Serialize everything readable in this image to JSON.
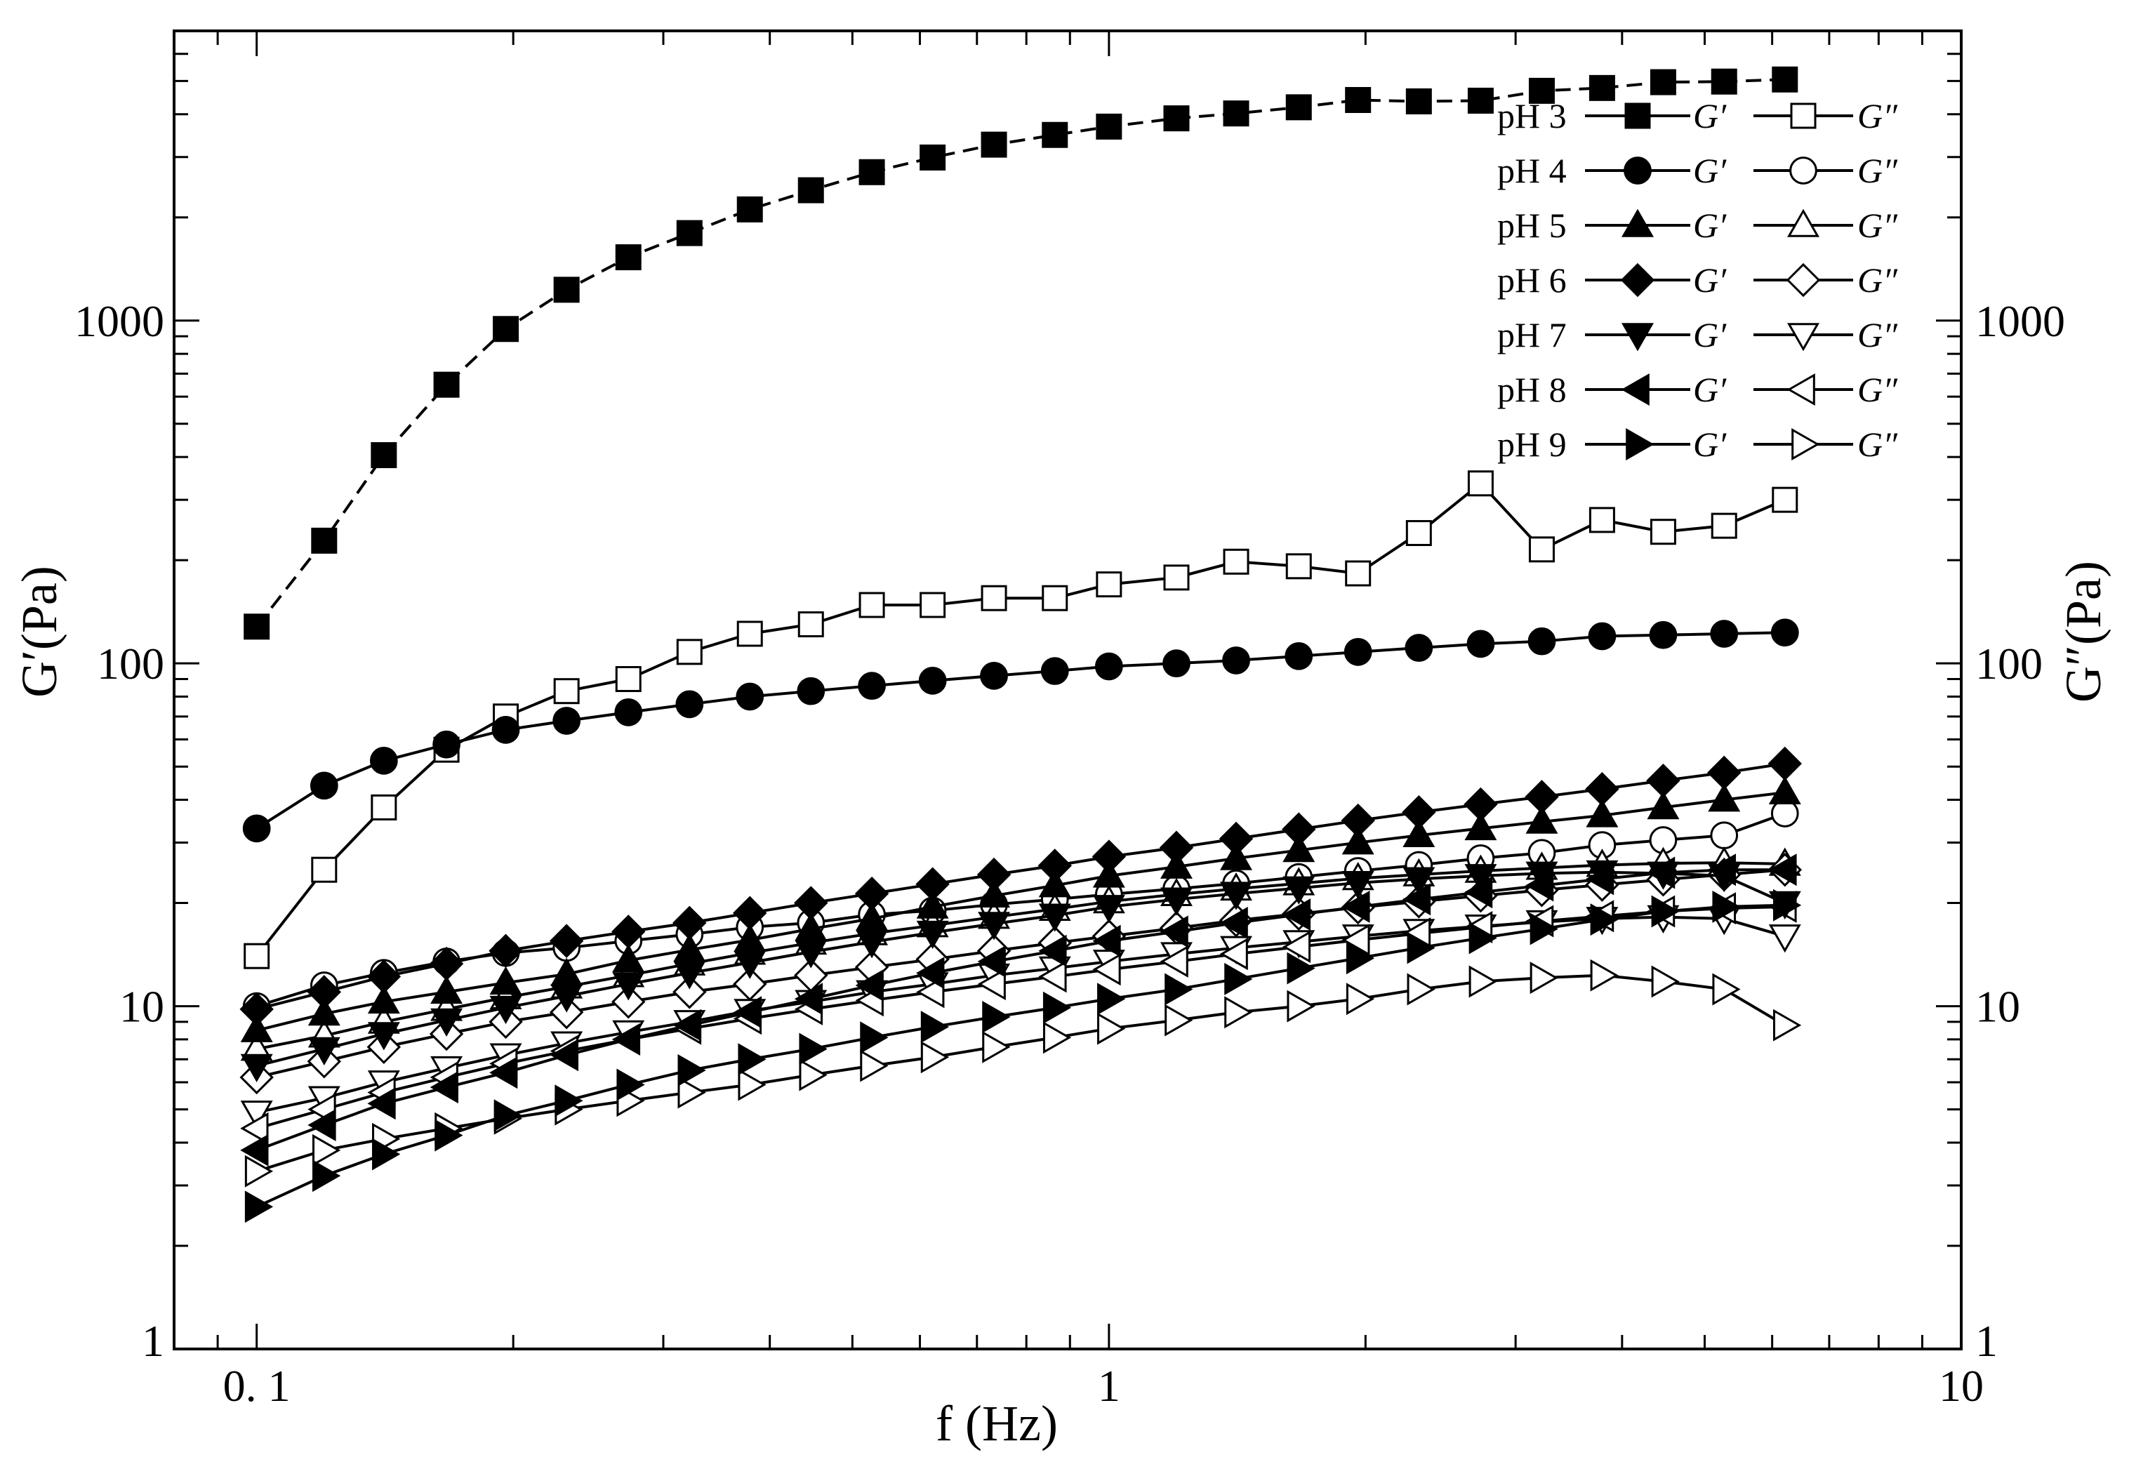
{
  "chart_data": {
    "type": "line",
    "xlabel": "f (Hz)",
    "ylabel_left": "G′(Pa)",
    "ylabel_right": "G″(Pa)",
    "x_scale": "log",
    "y_scale": "log",
    "xlim": [
      0.08,
      10
    ],
    "ylim": [
      1,
      7000
    ],
    "x_ticks": [
      {
        "value": 0.1,
        "label": "0. 1"
      },
      {
        "value": 1,
        "label": "1"
      },
      {
        "value": 10,
        "label": "10"
      }
    ],
    "y_ticks": [
      {
        "value": 1,
        "label": "1"
      },
      {
        "value": 10,
        "label": "10"
      },
      {
        "value": 100,
        "label": "100"
      },
      {
        "value": 1000,
        "label": "1000"
      }
    ],
    "grid": false,
    "legend_position": "top-right",
    "x": [
      0.1,
      0.12,
      0.141,
      0.167,
      0.196,
      0.231,
      0.273,
      0.322,
      0.379,
      0.447,
      0.527,
      0.621,
      0.733,
      0.864,
      1.0,
      1.2,
      1.41,
      1.67,
      1.96,
      2.31,
      2.73,
      3.22,
      3.79,
      4.47,
      5.27,
      6.21
    ],
    "legend_rows": [
      {
        "ph": "pH 3",
        "gp": "G′",
        "gpp": "G″",
        "marker": "square"
      },
      {
        "ph": "pH 4",
        "gp": "G′",
        "gpp": "G″",
        "marker": "circle"
      },
      {
        "ph": "pH 5",
        "gp": "G′",
        "gpp": "G″",
        "marker": "triangle-up"
      },
      {
        "ph": "pH 6",
        "gp": "G′",
        "gpp": "G″",
        "marker": "diamond"
      },
      {
        "ph": "pH 7",
        "gp": "G′",
        "gpp": "G″",
        "marker": "triangle-down"
      },
      {
        "ph": "pH 8",
        "gp": "G′",
        "gpp": "G″",
        "marker": "triangle-left"
      },
      {
        "ph": "pH 9",
        "gp": "G′",
        "gpp": "G″",
        "marker": "triangle-right"
      }
    ],
    "series": [
      {
        "name": "pH 3",
        "quantity": "G′",
        "marker": "square",
        "filled": true,
        "dashed": true,
        "values": [
          128,
          228,
          405,
          650,
          945,
          1230,
          1530,
          1800,
          2110,
          2400,
          2710,
          2990,
          3260,
          3480,
          3680,
          3890,
          4020,
          4190,
          4400,
          4360,
          4380,
          4680,
          4770,
          4960,
          4980,
          5050
        ]
      },
      {
        "name": "pH 3",
        "quantity": "G″",
        "marker": "square",
        "filled": false,
        "dashed": false,
        "values": [
          14,
          25,
          38,
          56,
          70,
          83,
          90,
          108,
          122,
          130,
          148,
          148,
          155,
          155,
          170,
          178,
          198,
          192,
          183,
          240,
          335,
          215,
          262,
          242,
          252,
          300
        ]
      },
      {
        "name": "pH 4",
        "quantity": "G′",
        "marker": "circle",
        "filled": true,
        "dashed": false,
        "values": [
          33,
          44,
          52,
          58,
          64,
          68,
          72,
          76,
          80,
          83,
          86,
          89,
          92,
          95,
          98,
          100,
          102,
          105,
          108,
          111,
          114,
          116,
          120,
          121,
          122,
          123
        ]
      },
      {
        "name": "pH 4",
        "quantity": "G″",
        "marker": "circle",
        "filled": false,
        "dashed": false,
        "values": [
          10,
          11.5,
          12.5,
          13.5,
          14.3,
          14.8,
          15.5,
          16.2,
          17,
          17.5,
          18.5,
          19,
          19.8,
          20.5,
          21.2,
          22,
          22.8,
          23.8,
          24.8,
          25.8,
          27,
          28,
          29.5,
          30.5,
          31.5,
          36.5
        ]
      },
      {
        "name": "pH 5",
        "quantity": "G′",
        "marker": "triangle-up",
        "filled": true,
        "dashed": false,
        "values": [
          8.5,
          9.5,
          10.3,
          11,
          11.7,
          12.4,
          13.6,
          14.6,
          15.6,
          16.8,
          18,
          19.5,
          21,
          22.5,
          24,
          25.5,
          27,
          28.5,
          30,
          31.5,
          33,
          34.5,
          36,
          38,
          40,
          42
        ]
      },
      {
        "name": "pH 5",
        "quantity": "G″",
        "marker": "triangle-up",
        "filled": false,
        "dashed": false,
        "values": [
          7.5,
          8.2,
          9,
          9.8,
          10.6,
          11.4,
          12.3,
          13.3,
          14.3,
          15.3,
          16.3,
          17.2,
          18.2,
          19.2,
          20.2,
          21.2,
          22,
          22.8,
          23.6,
          24.2,
          24.8,
          25.3,
          25.8,
          26.1,
          26.2,
          26
        ]
      },
      {
        "name": "pH 6",
        "quantity": "G′",
        "marker": "diamond",
        "filled": true,
        "dashed": false,
        "values": [
          9.8,
          11,
          12.2,
          13.3,
          14.5,
          15.5,
          16.5,
          17.5,
          18.7,
          20,
          21.3,
          22.7,
          24.2,
          25.7,
          27.3,
          29,
          30.8,
          32.8,
          34.8,
          36.8,
          38.8,
          40.8,
          43,
          45.5,
          48,
          51
        ]
      },
      {
        "name": "pH 6",
        "quantity": "G″",
        "marker": "diamond",
        "filled": false,
        "dashed": false,
        "values": [
          6.2,
          6.9,
          7.6,
          8.3,
          9,
          9.6,
          10.3,
          11,
          11.6,
          12.3,
          13,
          13.7,
          14.5,
          15.3,
          16,
          16.9,
          17.8,
          18.6,
          19.4,
          20.2,
          21,
          21.8,
          22.6,
          23.4,
          24.2,
          25
        ]
      },
      {
        "name": "pH 7",
        "quantity": "G′",
        "marker": "triangle-down",
        "filled": true,
        "dashed": false,
        "values": [
          6.7,
          7.5,
          8.3,
          9.1,
          9.9,
          10.7,
          11.6,
          12.5,
          13.4,
          14.4,
          15.4,
          16.4,
          17.4,
          18.4,
          19.5,
          20.5,
          21.3,
          22.1,
          22.9,
          23.5,
          24,
          24.4,
          24.6,
          24.4,
          24,
          20
        ]
      },
      {
        "name": "pH 7",
        "quantity": "G″",
        "marker": "triangle-down",
        "filled": false,
        "dashed": false,
        "values": [
          4.9,
          5.4,
          6,
          6.6,
          7.2,
          7.8,
          8.4,
          9,
          9.7,
          10.3,
          11,
          11.6,
          12.3,
          12.9,
          13.5,
          14.2,
          14.8,
          15.4,
          16,
          16.6,
          17.1,
          17.6,
          18,
          18.2,
          18,
          16
        ]
      },
      {
        "name": "pH 8",
        "quantity": "G′",
        "marker": "triangle-left",
        "filled": true,
        "dashed": false,
        "values": [
          3.8,
          4.5,
          5.2,
          5.8,
          6.4,
          7.2,
          8,
          8.8,
          9.6,
          10.5,
          11.5,
          12.5,
          13.5,
          14.5,
          15.5,
          16.5,
          17.5,
          18.5,
          19.5,
          20.5,
          21.5,
          22.5,
          23.5,
          24.5,
          25,
          25
        ]
      },
      {
        "name": "pH 8",
        "quantity": "G″",
        "marker": "triangle-left",
        "filled": false,
        "dashed": false,
        "values": [
          4.4,
          5,
          5.6,
          6.2,
          6.8,
          7.4,
          8,
          8.6,
          9.2,
          9.8,
          10.4,
          11,
          11.6,
          12.2,
          12.8,
          13.5,
          14.2,
          14.9,
          15.6,
          16.3,
          17,
          17.7,
          18.3,
          18.9,
          19.3,
          19.5
        ]
      },
      {
        "name": "pH 9",
        "quantity": "G′",
        "marker": "triangle-right",
        "filled": true,
        "dashed": false,
        "values": [
          2.6,
          3.2,
          3.7,
          4.2,
          4.8,
          5.3,
          5.9,
          6.5,
          7,
          7.5,
          8.1,
          8.7,
          9.3,
          9.9,
          10.5,
          11.2,
          12,
          12.9,
          13.8,
          14.8,
          15.8,
          16.8,
          17.9,
          18.9,
          19.5,
          19.7
        ]
      },
      {
        "name": "pH 9",
        "quantity": "G″",
        "marker": "triangle-right",
        "filled": false,
        "dashed": false,
        "values": [
          3.3,
          3.8,
          4.1,
          4.4,
          4.7,
          5,
          5.3,
          5.6,
          5.9,
          6.3,
          6.7,
          7.1,
          7.6,
          8.1,
          8.6,
          9.1,
          9.6,
          10,
          10.5,
          11.2,
          11.8,
          12.1,
          12.3,
          11.8,
          11.2,
          8.8
        ]
      }
    ]
  }
}
